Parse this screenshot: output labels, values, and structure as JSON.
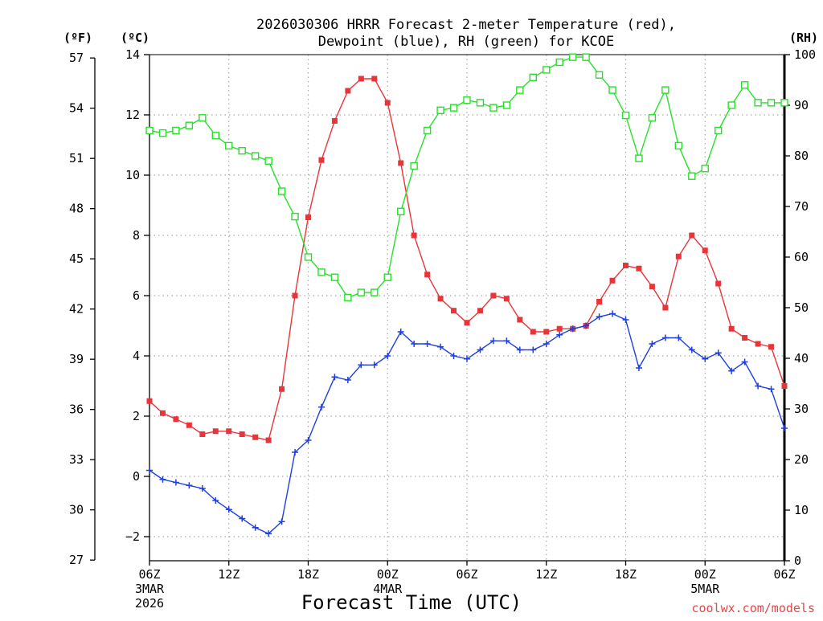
{
  "chart_data": {
    "type": "line",
    "title": "2026030306 HRRR Forecast 2-meter Temperature (red),",
    "subtitle": "Dewpoint (blue), RH (green) for KCOE",
    "xlabel": "Forecast Time (UTC)",
    "credit": "coolwx.com/models",
    "left_unit_f": "(ºF)",
    "left_unit_c": "(ºC)",
    "right_unit": "(RH)",
    "celsius_ylim": [
      -2.8,
      14
    ],
    "rh_ylim": [
      0,
      100
    ],
    "grid": true,
    "x_tick_labels": [
      {
        "hour": 0,
        "label": "06Z"
      },
      {
        "hour": 6,
        "label": "12Z"
      },
      {
        "hour": 12,
        "label": "18Z"
      },
      {
        "hour": 18,
        "label": "00Z"
      },
      {
        "hour": 24,
        "label": "06Z"
      },
      {
        "hour": 30,
        "label": "12Z"
      },
      {
        "hour": 36,
        "label": "18Z"
      },
      {
        "hour": 42,
        "label": "00Z"
      },
      {
        "hour": 48,
        "label": "06Z"
      }
    ],
    "x_date_labels": [
      {
        "hour": 0,
        "label": "3MAR"
      },
      {
        "hour": 0,
        "label": "2026",
        "row": 2
      },
      {
        "hour": 18,
        "label": "4MAR"
      },
      {
        "hour": 42,
        "label": "5MAR"
      }
    ],
    "celsius_ticks": [
      -2,
      0,
      2,
      4,
      6,
      8,
      10,
      12,
      14
    ],
    "fahrenheit_ticks": [
      27,
      30,
      33,
      36,
      39,
      42,
      45,
      48,
      51,
      54,
      57
    ],
    "rh_ticks": [
      0,
      10,
      20,
      30,
      40,
      50,
      60,
      70,
      80,
      90,
      100
    ],
    "forecast_hours": [
      0,
      1,
      2,
      3,
      4,
      5,
      6,
      7,
      8,
      9,
      10,
      11,
      12,
      13,
      14,
      15,
      16,
      17,
      18,
      19,
      20,
      21,
      22,
      23,
      24,
      25,
      26,
      27,
      28,
      29,
      30,
      31,
      32,
      33,
      34,
      35,
      36,
      37,
      38,
      39,
      40,
      41,
      42,
      43,
      44,
      45,
      46,
      47,
      48
    ],
    "series": [
      {
        "name": "Temperature",
        "unit": "°C",
        "axis": "celsius",
        "color": "#e8353a",
        "marker": "filled-square",
        "values": [
          2.5,
          2.1,
          1.9,
          1.7,
          1.4,
          1.5,
          1.5,
          1.4,
          1.3,
          1.2,
          2.9,
          6.0,
          8.6,
          10.5,
          11.8,
          12.8,
          13.2,
          13.2,
          12.4,
          10.4,
          8.0,
          6.7,
          5.9,
          5.5,
          5.1,
          5.5,
          6.0,
          5.9,
          5.2,
          4.8,
          4.8,
          4.9,
          4.9,
          5.0,
          5.8,
          6.5,
          7.0,
          6.9,
          6.3,
          5.6,
          7.3,
          8.0,
          7.5,
          6.4,
          4.9,
          4.6,
          4.4,
          4.3,
          3.0
        ]
      },
      {
        "name": "Dewpoint",
        "unit": "°C",
        "axis": "celsius",
        "color": "#1f3fe0",
        "marker": "plus",
        "values": [
          0.2,
          -0.1,
          -0.2,
          -0.3,
          -0.4,
          -0.8,
          -1.1,
          -1.4,
          -1.7,
          -1.9,
          -1.5,
          0.8,
          1.2,
          2.3,
          3.3,
          3.2,
          3.7,
          3.7,
          4.0,
          4.8,
          4.4,
          4.4,
          4.3,
          4.0,
          3.9,
          4.2,
          4.5,
          4.5,
          4.2,
          4.2,
          4.4,
          4.7,
          4.9,
          5.0,
          5.3,
          5.4,
          5.2,
          3.6,
          4.4,
          4.6,
          4.6,
          4.2,
          3.9,
          4.1,
          3.5,
          3.8,
          3.0,
          2.9,
          1.6
        ]
      },
      {
        "name": "RH",
        "unit": "%",
        "axis": "rh",
        "color": "#27e02a",
        "marker": "open-square",
        "values": [
          85,
          84.5,
          85,
          86,
          87.5,
          84,
          82,
          81,
          80,
          79,
          73,
          68,
          60,
          57,
          56,
          52,
          53,
          53,
          56,
          69,
          78,
          85,
          89,
          89.5,
          91,
          90.5,
          89.5,
          90,
          93,
          95.5,
          97,
          98.5,
          99.5,
          99.5,
          96,
          93,
          88,
          79.5,
          87.5,
          93,
          82,
          76,
          77.5,
          85,
          90,
          94,
          90.5,
          90.5,
          90.5
        ]
      }
    ]
  }
}
